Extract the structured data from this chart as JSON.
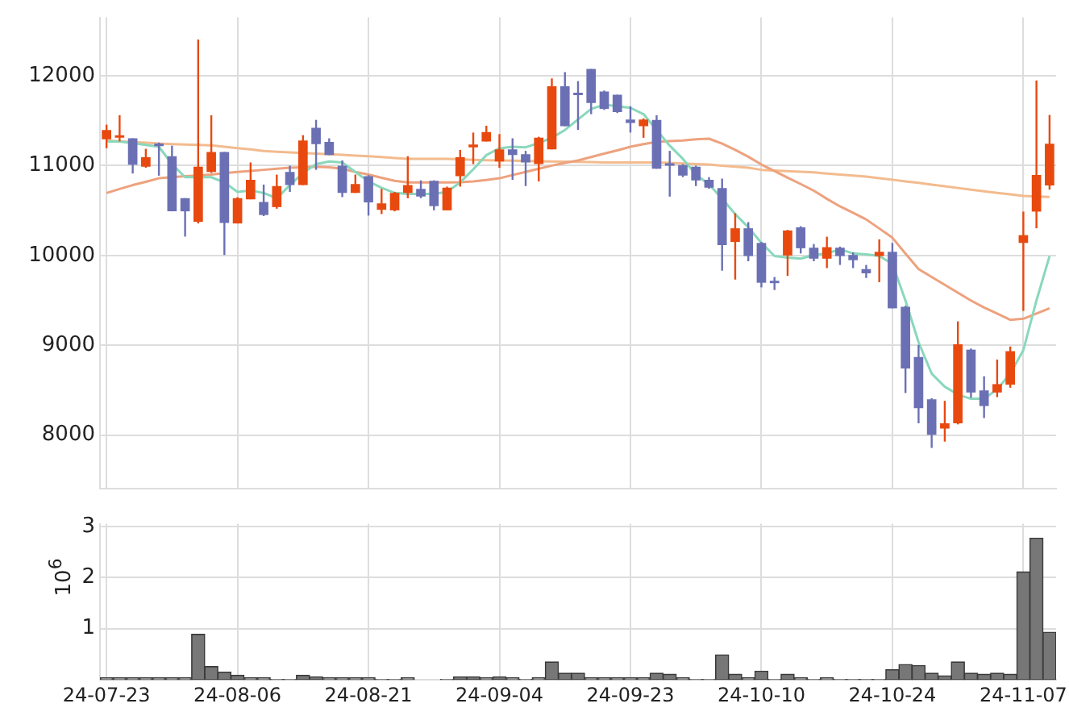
{
  "chart_data": [
    {
      "type": "candlestick",
      "categories": [
        null,
        null,
        null,
        null,
        null,
        null,
        null,
        null,
        null,
        null,
        null,
        null,
        null,
        null,
        null,
        null,
        null,
        null,
        null,
        null,
        null,
        null,
        null,
        null,
        null,
        null,
        null,
        null,
        null,
        null,
        null,
        null,
        null,
        null,
        null,
        null,
        null,
        null,
        null,
        null,
        null,
        null,
        null,
        null,
        null,
        null,
        null,
        null,
        null,
        null,
        null,
        null,
        null,
        null,
        null,
        null,
        null,
        null,
        null,
        null,
        null,
        null,
        null,
        null,
        null,
        null,
        null,
        null,
        null,
        null,
        null,
        null,
        null
      ],
      "ohlc": [
        [
          11292,
          11456,
          11193,
          11397
        ],
        [
          11310,
          11561,
          11269,
          11339
        ],
        [
          11304,
          11304,
          10912,
          11011
        ],
        [
          10988,
          11187,
          10976,
          11093
        ],
        [
          11245,
          11257,
          10888,
          11216
        ],
        [
          11105,
          11222,
          10491,
          10491
        ],
        [
          10637,
          10637,
          10210,
          10491
        ],
        [
          10374,
          12404,
          10356,
          10988
        ],
        [
          10929,
          11561,
          10918,
          11152
        ],
        [
          11152,
          11152,
          10005,
          10362
        ],
        [
          10356,
          10649,
          10356,
          10637
        ],
        [
          10625,
          11035,
          10625,
          10842
        ],
        [
          10596,
          10789,
          10438,
          10450
        ],
        [
          10538,
          10900,
          10520,
          10772
        ],
        [
          10929,
          11000,
          10707,
          10783
        ],
        [
          10783,
          11339,
          10783,
          11280
        ],
        [
          11421,
          11509,
          10953,
          11240
        ],
        [
          11263,
          11304,
          11117,
          11117
        ],
        [
          11000,
          11058,
          10649,
          10695
        ],
        [
          10695,
          10900,
          10695,
          10795
        ],
        [
          10883,
          10894,
          10444,
          10590
        ],
        [
          10508,
          10742,
          10461,
          10579
        ],
        [
          10502,
          10707,
          10491,
          10695
        ],
        [
          10695,
          11105,
          10637,
          10783
        ],
        [
          10742,
          10836,
          10637,
          10655
        ],
        [
          10830,
          10836,
          10502,
          10549
        ],
        [
          10502,
          10766,
          10502,
          10754
        ],
        [
          10883,
          11175,
          10766,
          11093
        ],
        [
          11204,
          11368,
          11017,
          11234
        ],
        [
          11269,
          11444,
          11269,
          11374
        ],
        [
          11046,
          11351,
          10976,
          11181
        ],
        [
          11181,
          11304,
          10842,
          11117
        ],
        [
          11128,
          11164,
          10772,
          11035
        ],
        [
          11017,
          11321,
          10824,
          11310
        ],
        [
          11181,
          11971,
          11181,
          11883
        ],
        [
          11883,
          12041,
          11438,
          11438
        ],
        [
          11801,
          11941,
          11397,
          11784
        ],
        [
          12076,
          12076,
          11573,
          11696
        ],
        [
          11825,
          11836,
          11620,
          11631
        ],
        [
          11789,
          11789,
          11585,
          11596
        ],
        [
          11514,
          11661,
          11368,
          11474
        ],
        [
          11438,
          11526,
          11310,
          11514
        ],
        [
          11509,
          11561,
          10965,
          10965
        ],
        [
          11023,
          11164,
          10655,
          11000
        ],
        [
          11006,
          11017,
          10871,
          10888
        ],
        [
          10988,
          11000,
          10772,
          10836
        ],
        [
          10842,
          10871,
          10742,
          10754
        ],
        [
          10750,
          10855,
          9830,
          10115
        ],
        [
          10150,
          10470,
          9731,
          10302
        ],
        [
          10302,
          10371,
          9935,
          9993
        ],
        [
          10139,
          10150,
          9644,
          9696
        ],
        [
          9708,
          9760,
          9615,
          9691
        ],
        [
          9999,
          10284,
          9772,
          10278
        ],
        [
          10313,
          10325,
          10022,
          10080
        ],
        [
          10086,
          10127,
          9935,
          9964
        ],
        [
          9964,
          10208,
          9859,
          10092
        ],
        [
          10086,
          10098,
          9894,
          9993
        ],
        [
          10005,
          10034,
          9859,
          9947
        ],
        [
          9848,
          9894,
          9749,
          9801
        ],
        [
          9993,
          10179,
          9702,
          10040
        ],
        [
          10040,
          10139,
          9411,
          9411
        ],
        [
          9429,
          9440,
          8468,
          8742
        ],
        [
          8870,
          9004,
          8131,
          8300
        ],
        [
          8398,
          8410,
          7857,
          8003
        ],
        [
          8073,
          8381,
          7927,
          8131
        ],
        [
          8131,
          9266,
          8119,
          9010
        ],
        [
          8951,
          8963,
          8416,
          8474
        ],
        [
          8497,
          8655,
          8189,
          8323
        ],
        [
          8474,
          8841,
          8422,
          8567
        ],
        [
          8561,
          8986,
          8527,
          8934
        ],
        [
          10139,
          10488,
          9382,
          10226
        ],
        [
          10488,
          11948,
          10302,
          10895
        ],
        [
          10779,
          11564,
          10732,
          11244
        ]
      ],
      "colors": [
        "#e8490f",
        "#e8490f",
        "#6b70b4",
        "#e8490f",
        "#6b70b4",
        "#6b70b4",
        "#6b70b4",
        "#e8490f",
        "#e8490f",
        "#6b70b4",
        "#e8490f",
        "#e8490f",
        "#6b70b4",
        "#e8490f",
        "#6b70b4",
        "#e8490f",
        "#6b70b4",
        "#6b70b4",
        "#6b70b4",
        "#e8490f",
        "#6b70b4",
        "#e8490f",
        "#e8490f",
        "#e8490f",
        "#6b70b4",
        "#6b70b4",
        "#e8490f",
        "#e8490f",
        "#e8490f",
        "#e8490f",
        "#e8490f",
        "#6b70b4",
        "#6b70b4",
        "#e8490f",
        "#e8490f",
        "#6b70b4",
        "#6b70b4",
        "#6b70b4",
        "#6b70b4",
        "#6b70b4",
        "#6b70b4",
        "#e8490f",
        "#6b70b4",
        "#6b70b4",
        "#6b70b4",
        "#6b70b4",
        "#6b70b4",
        "#6b70b4",
        "#e8490f",
        "#6b70b4",
        "#6b70b4",
        "#6b70b4",
        "#e8490f",
        "#6b70b4",
        "#6b70b4",
        "#e8490f",
        "#6b70b4",
        "#6b70b4",
        "#6b70b4",
        "#e8490f",
        "#6b70b4",
        "#6b70b4",
        "#6b70b4",
        "#6b70b4",
        "#e8490f",
        "#e8490f",
        "#6b70b4",
        "#6b70b4",
        "#e8490f",
        "#e8490f",
        "#e8490f",
        "#e8490f",
        "#e8490f"
      ],
      "series": [
        {
          "type": "line",
          "color": "#8ad8bc",
          "values": [
            11269,
            11269,
            11250,
            11230,
            11210,
            11017,
            10871,
            10871,
            10871,
            10812,
            10707,
            10724,
            10695,
            10637,
            10783,
            10918,
            11017,
            11046,
            11035,
            10929,
            10824,
            10754,
            10695,
            10684,
            10684,
            10684,
            10707,
            10812,
            10959,
            11117,
            11193,
            11210,
            11204,
            11251,
            11310,
            11397,
            11514,
            11631,
            11678,
            11661,
            11643,
            11573,
            11397,
            11222,
            11076,
            10900,
            10790,
            10633,
            10459,
            10313,
            10139,
            9993,
            9976,
            9964,
            10005,
            10022,
            10069,
            10022,
            10011,
            9993,
            9906,
            9498,
            9033,
            8684,
            8538,
            8451,
            8404,
            8404,
            8509,
            8684,
            8946,
            9498,
            9993
          ]
        },
        {
          "type": "line",
          "color": "#eda27e",
          "values": [
            10695,
            10740,
            10783,
            10820,
            10859,
            10871,
            10883,
            10890,
            10900,
            10915,
            10929,
            10940,
            10953,
            10965,
            10976,
            10980,
            10988,
            10982,
            10965,
            10930,
            10900,
            10865,
            10830,
            10812,
            10812,
            10812,
            10812,
            10815,
            10824,
            10840,
            10859,
            10895,
            10929,
            10965,
            11000,
            11030,
            11058,
            11095,
            11134,
            11170,
            11210,
            11240,
            11263,
            11272,
            11280,
            11292,
            11300,
            11244,
            11175,
            11099,
            11012,
            10940,
            10866,
            10795,
            10721,
            10630,
            10546,
            10475,
            10401,
            10300,
            10197,
            10020,
            9848,
            9760,
            9673,
            9585,
            9498,
            9420,
            9353,
            9283,
            9295,
            9353,
            9411
          ]
        },
        {
          "type": "line",
          "color": "#f3bb8e",
          "values": [
            11280,
            11271,
            11262,
            11254,
            11245,
            11240,
            11235,
            11230,
            11225,
            11210,
            11195,
            11180,
            11163,
            11155,
            11148,
            11141,
            11134,
            11127,
            11120,
            11112,
            11105,
            11095,
            11085,
            11076,
            11076,
            11076,
            11076,
            11070,
            11065,
            11060,
            11058,
            11055,
            11052,
            11049,
            11046,
            11044,
            11042,
            11040,
            11035,
            11035,
            11035,
            11035,
            11035,
            11030,
            11024,
            11018,
            11012,
            11000,
            10988,
            10976,
            10953,
            10946,
            10939,
            10931,
            10924,
            10912,
            10901,
            10890,
            10878,
            10860,
            10843,
            10825,
            10808,
            10789,
            10770,
            10751,
            10732,
            10715,
            10697,
            10680,
            10662,
            10656,
            10651
          ]
        }
      ],
      "ylim": [
        7400,
        12650
      ],
      "yticks": [
        8000,
        9000,
        10000,
        11000,
        12000
      ],
      "grid": true,
      "tick_labels": "y"
    },
    {
      "type": "bar",
      "categories": [
        "24-07-23",
        null,
        null,
        null,
        null,
        null,
        null,
        null,
        null,
        null,
        "24-08-06",
        null,
        null,
        null,
        null,
        null,
        null,
        null,
        null,
        null,
        "24-08-21",
        null,
        null,
        null,
        null,
        null,
        null,
        null,
        null,
        null,
        "24-09-04",
        null,
        null,
        null,
        null,
        null,
        null,
        null,
        null,
        null,
        "24-09-23",
        null,
        null,
        null,
        null,
        null,
        null,
        null,
        null,
        null,
        "24-10-10",
        null,
        null,
        null,
        null,
        null,
        null,
        null,
        null,
        null,
        "24-10-24",
        null,
        null,
        null,
        null,
        null,
        null,
        null,
        null,
        null,
        "24-11-07",
        null,
        null
      ],
      "values": [
        0.04,
        0.04,
        0.04,
        0.04,
        0.04,
        0.04,
        0.04,
        0.89,
        0.26,
        0.15,
        0.09,
        0.04,
        0.04,
        0.01,
        0.01,
        0.09,
        0.06,
        0.04,
        0.04,
        0.04,
        0.04,
        0.01,
        0.01,
        0.04,
        0,
        0,
        0.01,
        0.06,
        0.06,
        0.04,
        0.06,
        0.04,
        0.01,
        0.04,
        0.35,
        0.13,
        0.13,
        0.04,
        0.04,
        0.04,
        0.04,
        0.04,
        0.13,
        0.11,
        0.04,
        0.01,
        0.01,
        0.49,
        0.11,
        0.04,
        0.17,
        0.01,
        0.11,
        0.04,
        0.01,
        0.04,
        0.01,
        0.01,
        0.01,
        0.01,
        0.2,
        0.3,
        0.28,
        0.13,
        0.08,
        0.35,
        0.13,
        0.11,
        0.13,
        0.11,
        2.11,
        2.77,
        0.93
      ],
      "color": "#777777",
      "ylabel": "10$^{6}$",
      "ylim": [
        0,
        3.05
      ],
      "yticks": [
        1,
        2,
        3
      ],
      "grid": true
    }
  ]
}
